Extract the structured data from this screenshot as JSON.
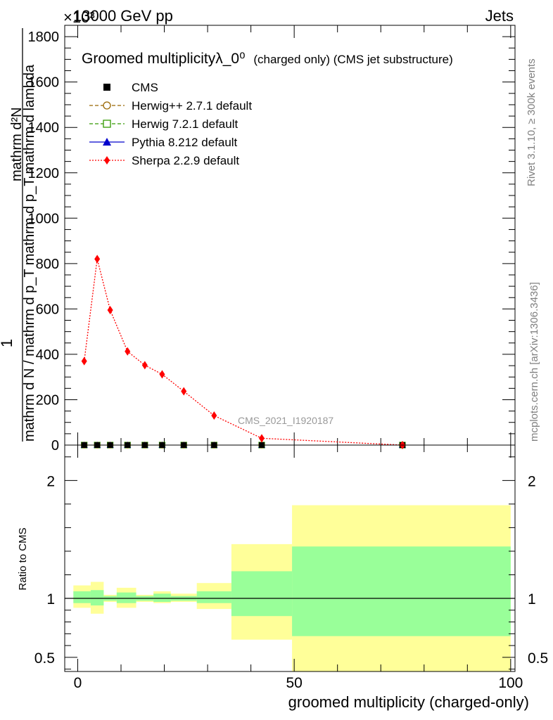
{
  "header": {
    "energy_label": "13000 GeV pp",
    "process_label": "Jets",
    "exponent_label": "×10³"
  },
  "side": {
    "rivet_label": "Rivet 3.1.10, ≥ 300k events",
    "mcplots_label": "mcplots.cern.ch [arXiv:1306.3436]"
  },
  "colors": {
    "cms": "#000000",
    "herwigpp": "#996600",
    "herwig7": "#339900",
    "pythia": "#0000cc",
    "sherpa": "#ff0000",
    "band_outer": "#ffff99",
    "band_inner": "#99ff99"
  },
  "chart_data": [
    {
      "type": "line",
      "title": "Groomed multiplicityλ_0⁰",
      "title_suffix": "(charged only) (CMS jet substructure)",
      "ylabel_numerator": "1",
      "ylabel_denominator": "mathrm d N / mathrm d p_T mathrm d p_T mathrm d lambda",
      "ylabel_top": "mathrm d²N",
      "ylim": [
        0,
        1850
      ],
      "yticks": [
        0,
        200,
        400,
        600,
        800,
        1000,
        1200,
        1400,
        1600,
        1800
      ],
      "xlim": [
        -3,
        101
      ],
      "watermark": "CMS_2021_I1920187",
      "legend_position": "top-left",
      "legend": [
        {
          "name": "CMS",
          "key": "cms"
        },
        {
          "name": "Herwig++ 2.7.1 default",
          "key": "herwigpp"
        },
        {
          "name": "Herwig 7.2.1 default",
          "key": "herwig7"
        },
        {
          "name": "Pythia 8.212 default",
          "key": "pythia"
        },
        {
          "name": "Sherpa 2.2.9 default",
          "key": "sherpa"
        }
      ],
      "series": [
        {
          "name": "Sherpa 2.2.9 default",
          "x": [
            1.5,
            4.5,
            7.5,
            11.5,
            15.5,
            19.5,
            24.5,
            31.5,
            42.5,
            75
          ],
          "y": [
            370,
            820,
            595,
            413,
            352,
            312,
            237,
            130,
            30,
            0
          ]
        },
        {
          "name": "CMS",
          "x": [
            1.5,
            4.5,
            7.5,
            11.5,
            15.5,
            19.5,
            24.5,
            31.5,
            42.5,
            75
          ],
          "y": [
            0,
            0,
            0,
            0,
            0,
            0,
            0,
            0,
            0,
            0
          ]
        }
      ]
    },
    {
      "type": "area",
      "ylabel": "Ratio to CMS",
      "xlabel": "groomed multiplicity (charged-only)",
      "ylim": [
        0.38,
        2.3
      ],
      "yticks": [
        0.5,
        1,
        2
      ],
      "ytick_labels": [
        "0.5",
        "1",
        "2"
      ],
      "xlim": [
        -3,
        101
      ],
      "xticks": [
        0,
        50,
        100
      ],
      "xtick_labels": [
        "0",
        "50",
        "100"
      ],
      "bins": [
        {
          "x0": -1,
          "x1": 3,
          "inner": [
            0.96,
            1.06
          ],
          "outer": [
            0.92,
            1.11
          ]
        },
        {
          "x0": 3,
          "x1": 6,
          "inner": [
            0.94,
            1.07
          ],
          "outer": [
            0.87,
            1.14
          ]
        },
        {
          "x0": 6,
          "x1": 9,
          "inner": [
            0.98,
            1.02
          ],
          "outer": [
            0.97,
            1.03
          ]
        },
        {
          "x0": 9,
          "x1": 13.5,
          "inner": [
            0.96,
            1.05
          ],
          "outer": [
            0.92,
            1.09
          ]
        },
        {
          "x0": 13.5,
          "x1": 17.5,
          "inner": [
            0.98,
            1.02
          ],
          "outer": [
            0.97,
            1.03
          ]
        },
        {
          "x0": 17.5,
          "x1": 21.5,
          "inner": [
            0.97,
            1.04
          ],
          "outer": [
            0.96,
            1.06
          ]
        },
        {
          "x0": 21.5,
          "x1": 27.5,
          "inner": [
            0.98,
            1.02
          ],
          "outer": [
            0.97,
            1.04
          ]
        },
        {
          "x0": 27.5,
          "x1": 35.5,
          "inner": [
            0.96,
            1.06
          ],
          "outer": [
            0.91,
            1.13
          ]
        },
        {
          "x0": 35.5,
          "x1": 49.5,
          "inner": [
            0.85,
            1.23
          ],
          "outer": [
            0.65,
            1.46
          ]
        },
        {
          "x0": 49.5,
          "x1": 100,
          "inner": [
            0.68,
            1.44
          ],
          "outer": [
            0.38,
            1.79
          ]
        }
      ]
    }
  ]
}
